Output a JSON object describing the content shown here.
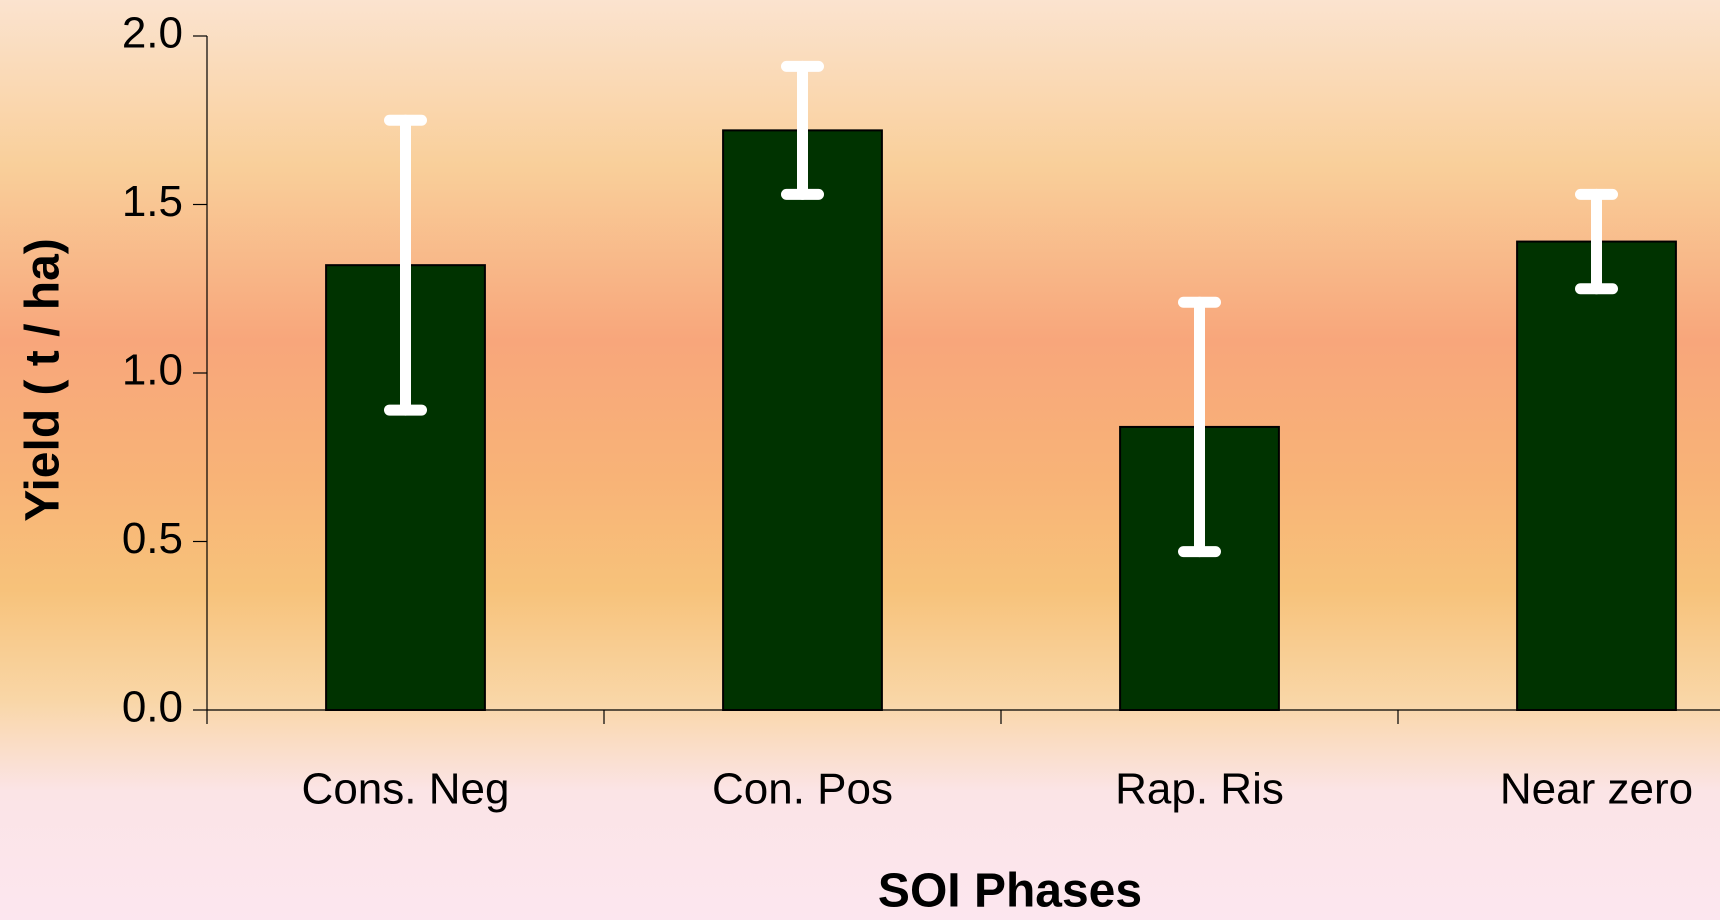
{
  "chart_data": {
    "type": "bar",
    "x_label": "SOI Phases",
    "y_label": "Yield ( t / ha)",
    "categories": [
      "Cons. Neg",
      "Con. Pos",
      "Rap. Ris",
      "Near zero"
    ],
    "values": [
      1.32,
      1.72,
      0.84,
      1.39
    ],
    "errors": [
      0.43,
      0.19,
      0.37,
      0.14
    ],
    "color": "#003300",
    "error_color": "#ffffff",
    "ylim": [
      0,
      2
    ],
    "yticks": [
      {
        "value": 0,
        "label": "0.0"
      },
      {
        "value": 0.5,
        "label": "0.5"
      },
      {
        "value": 1,
        "label": "1.0"
      },
      {
        "value": 1.5,
        "label": "1.5"
      },
      {
        "value": 2,
        "label": "2.0"
      }
    ],
    "grid": false
  }
}
